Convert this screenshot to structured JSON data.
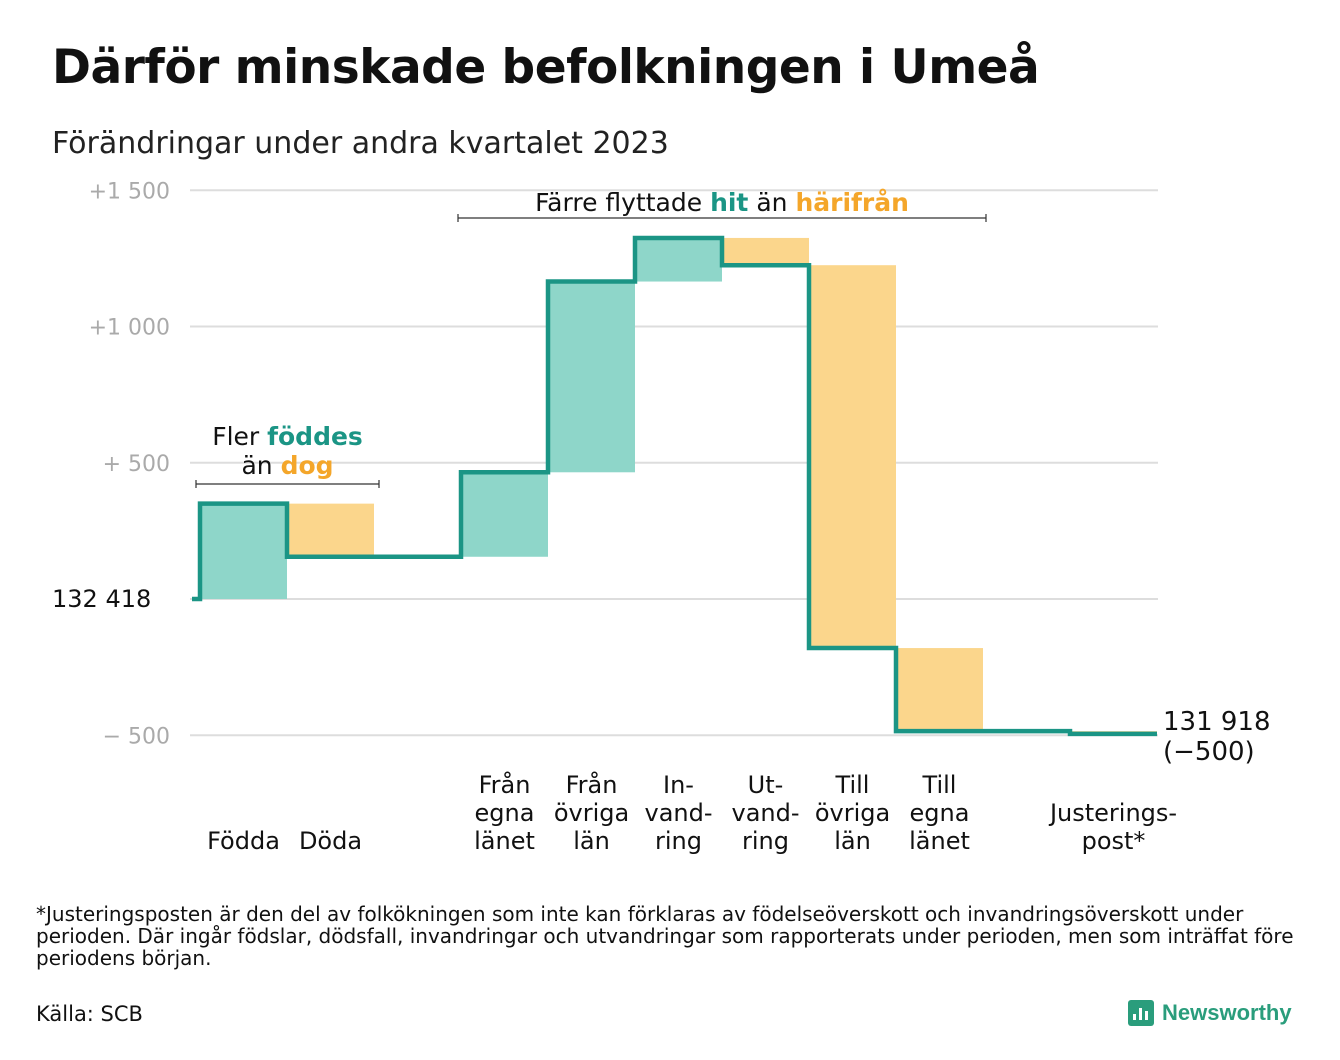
{
  "title": "Därför minskade befolkningen i Umeå",
  "subtitle": "Förändringar under andra kvartalet 2023",
  "footnote": "*Justeringsposten är den del av folkökningen som inte kan förklaras av födelseöverskott och invandringsöverskott under perioden. Där ingår födslar, dödsfall, invandringar och utvandringar som rapporterats under perioden, men som inträffat före periodens början.",
  "source": "Källa: SCB",
  "brand": "Newsworthy",
  "colors": {
    "increase": "#8ed6c9",
    "decrease": "#fbd68c",
    "line": "#1b9585",
    "hit_text": "#1b9585",
    "harifran_text": "#f4a62a",
    "grid": "#dddddd"
  },
  "chart_data": {
    "type": "waterfall",
    "start_value": 132418,
    "start_label": "132 418",
    "end_value": 131918,
    "end_label": "131 918",
    "end_change_label": "(−500)",
    "ylim": [
      -500,
      1500
    ],
    "yticks": [
      {
        "value": -500,
        "label": "− 500"
      },
      {
        "value": 500,
        "label": "+ 500"
      },
      {
        "value": 1000,
        "label": "+1 000"
      },
      {
        "value": 1500,
        "label": "+1 500"
      }
    ],
    "steps": [
      {
        "label": [
          "Födda"
        ],
        "change": 350
      },
      {
        "label": [
          "Döda"
        ],
        "change": -195
      },
      {
        "label": [],
        "change": 0
      },
      {
        "label": [
          "Från",
          "egna",
          "länet"
        ],
        "change": 310
      },
      {
        "label": [
          "Från",
          "övriga",
          "län"
        ],
        "change": 700
      },
      {
        "label": [
          "In-",
          "vand-",
          "ring"
        ],
        "change": 160
      },
      {
        "label": [
          "Ut-",
          "vand-",
          "ring"
        ],
        "change": -100
      },
      {
        "label": [
          "Till",
          "övriga",
          "län"
        ],
        "change": -1405
      },
      {
        "label": [
          "Till",
          "egna",
          "länet"
        ],
        "change": -305
      },
      {
        "label": [],
        "change": 0
      },
      {
        "label": [
          "Justerings-",
          "post*"
        ],
        "change": -10
      }
    ],
    "annotations": [
      {
        "text": [
          "Fler ",
          "föddes",
          " än ",
          "dog"
        ],
        "from_step": 0,
        "to_step": 1
      },
      {
        "text": [
          "Färre flyttade ",
          "hit",
          " än ",
          "härifrån"
        ],
        "from_step": 3,
        "to_step": 8
      }
    ]
  }
}
